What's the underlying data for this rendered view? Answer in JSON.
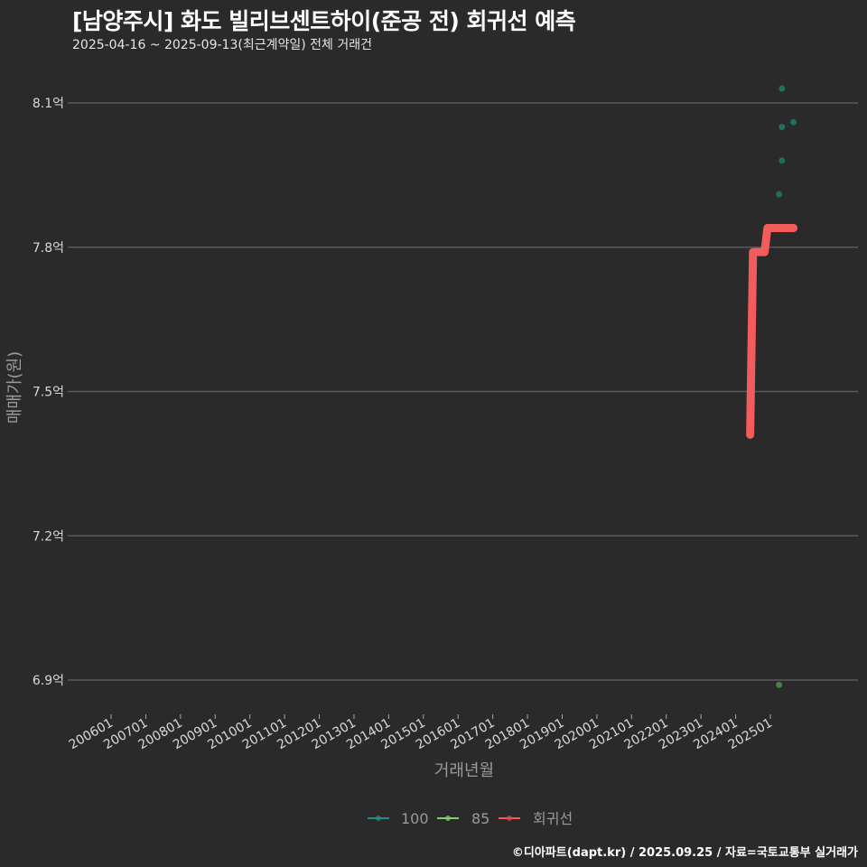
{
  "header": {
    "title": "[남양주시] 화도 빌리브센트하이(준공 전) 회귀선 예측",
    "subtitle": "2025-04-16 ~ 2025-09-13(최근계약일) 전체 거래건"
  },
  "credit": "©디아파트(dapt.kr) / 2025.09.25 / 자료=국토교통부 실거래가",
  "legend": {
    "items": [
      {
        "label": "100",
        "color": "#2a8a8a"
      },
      {
        "label": "85",
        "color": "#7fd36a"
      },
      {
        "label": "회귀선",
        "color": "#f25c5c"
      }
    ]
  },
  "chart_data": {
    "type": "scatter",
    "title": "[남양주시] 화도 빌리브센트하이(준공 전) 회귀선 예측",
    "subtitle": "2025-04-16 ~ 2025-09-13(최근계약일) 전체 거래건",
    "xlabel": "거래년월",
    "ylabel": "매매가(원)",
    "x_tick_labels": [
      "200601",
      "200701",
      "200801",
      "200901",
      "201001",
      "201101",
      "201201",
      "201301",
      "201401",
      "201501",
      "201601",
      "201701",
      "201801",
      "201901",
      "202001",
      "202101",
      "202201",
      "202301",
      "202401",
      "202501"
    ],
    "y_tick_labels": [
      "6.9억",
      "7.2억",
      "7.5억",
      "7.8억",
      "8.1억"
    ],
    "y_ticks": [
      6.9,
      7.2,
      7.5,
      7.8,
      8.1
    ],
    "ylim": [
      6.78,
      8.2
    ],
    "grid": "horizontal",
    "legend_position": "bottom",
    "series": [
      {
        "name": "100",
        "type": "scatter",
        "color": "#1f7a66",
        "points": [
          {
            "x": "202505",
            "y": 8.13
          },
          {
            "x": "202505",
            "y": 8.05
          },
          {
            "x": "202509",
            "y": 8.06
          },
          {
            "x": "202505",
            "y": 7.98
          },
          {
            "x": "202504",
            "y": 7.91
          }
        ]
      },
      {
        "name": "85",
        "type": "scatter",
        "color": "#4f8f4f",
        "points": [
          {
            "x": "202504",
            "y": 6.89
          }
        ]
      },
      {
        "name": "회귀선",
        "type": "line",
        "color": "#f25c5c",
        "points": [
          {
            "x": "202406",
            "y": 7.41
          },
          {
            "x": "202407",
            "y": 7.79
          },
          {
            "x": "202411",
            "y": 7.79
          },
          {
            "x": "202412",
            "y": 7.84
          },
          {
            "x": "202509",
            "y": 7.84
          }
        ]
      }
    ]
  }
}
